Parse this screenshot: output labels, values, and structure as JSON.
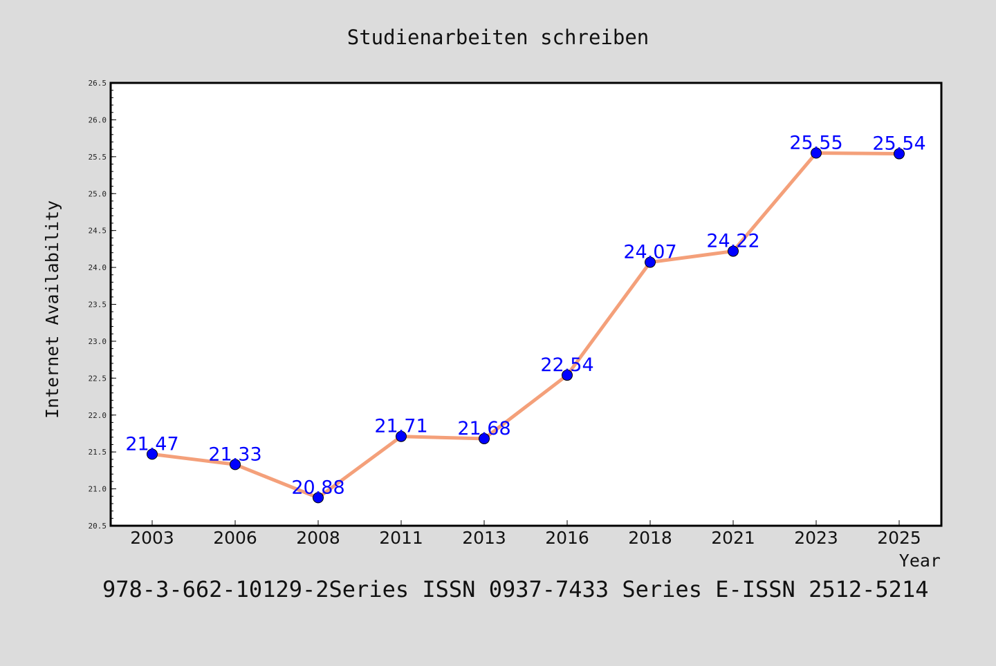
{
  "chart_data": {
    "type": "line",
    "title": "Studienarbeiten schreiben",
    "xlabel": "Year",
    "ylabel": "Internet Availability",
    "x": [
      "2003",
      "2006",
      "2008",
      "2011",
      "2013",
      "2016",
      "2018",
      "2021",
      "2023",
      "2025"
    ],
    "series": [
      {
        "values": [
          21.47,
          21.33,
          20.88,
          21.71,
          21.68,
          22.54,
          24.07,
          24.22,
          25.55,
          25.54
        ],
        "labels": [
          "21.47",
          "21.33",
          "20.88",
          "21.71",
          "21.68",
          "22.54",
          "24.07",
          "24.22",
          "25.55",
          "25.54"
        ],
        "line_color": "#f4a07a",
        "marker_color": "#0000ff"
      }
    ],
    "ylim": [
      20.5,
      26.5
    ],
    "yticks": [
      "20.5",
      "21.0",
      "21.5",
      "22.0",
      "22.5",
      "23.0",
      "23.5",
      "24.0",
      "24.5",
      "25.0",
      "25.5",
      "26.0",
      "26.5"
    ],
    "grid": false,
    "legend": "none"
  },
  "footer_text": "978-3-662-10129-2Series ISSN 0937-7433 Series E-ISSN 2512-5214",
  "colors": {
    "background": "#dcdcdc",
    "plot_background": "#ffffff",
    "axis": "#000000"
  }
}
